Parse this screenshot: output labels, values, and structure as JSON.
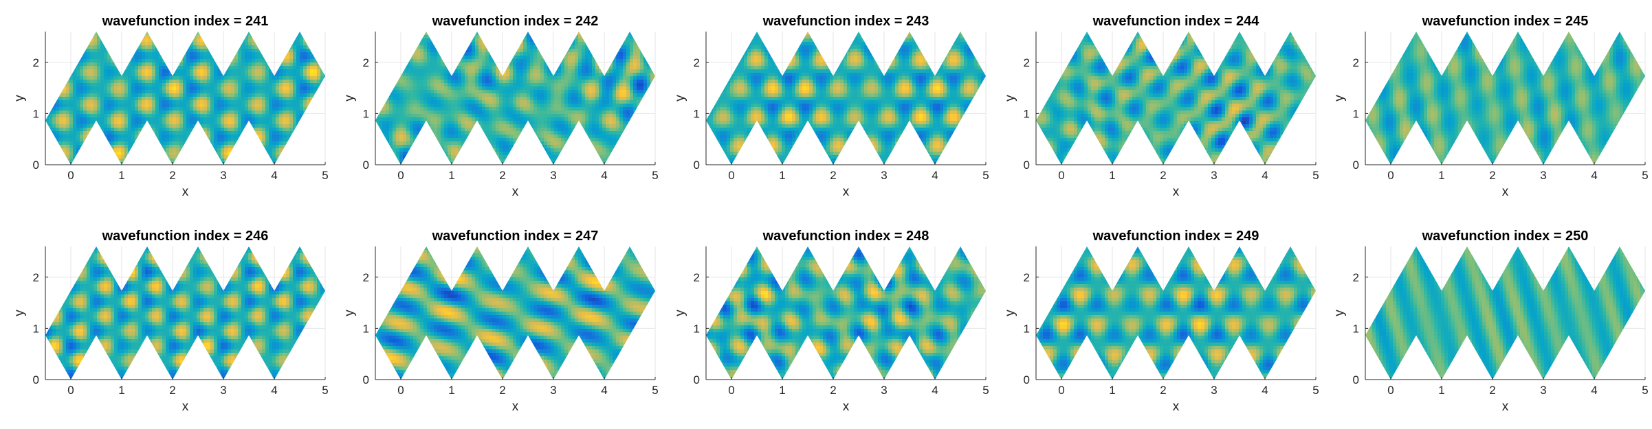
{
  "figure": {
    "colors": {
      "background": "#ffffff",
      "axis": "#262626",
      "grid": "#e6e6e6",
      "colormap": "parula",
      "colormap_stops": [
        "#352a87",
        "#0f5cdd",
        "#1481d6",
        "#06a4ca",
        "#2eb7a4",
        "#87bf77",
        "#d1bb59",
        "#fec832",
        "#f9fb0e"
      ]
    }
  },
  "chart_data": [
    {
      "type": "heatmap",
      "title": "wavefunction index = 241",
      "xlabel": "x",
      "ylabel": "y",
      "xlim": [
        -0.5,
        5
      ],
      "ylim": [
        0,
        2.6
      ],
      "xticks": [
        "0",
        "1",
        "2",
        "3",
        "4",
        "5"
      ],
      "yticks": [
        "0",
        "1",
        "2"
      ],
      "grid": true,
      "domain": "zigzag strip of 10 triangular cells (5 upward, 5 downward) between y = 0 and y = 2.6",
      "field": "eigenmode amplitude, parula colormap",
      "pattern": "hexagonal lattice of small spots"
    },
    {
      "type": "heatmap",
      "title": "wavefunction index = 242",
      "xlabel": "x",
      "ylabel": "y",
      "xlim": [
        -0.5,
        5
      ],
      "ylim": [
        0,
        2.6
      ],
      "xticks": [
        "0",
        "1",
        "2",
        "3",
        "4",
        "5"
      ],
      "yticks": [
        "0",
        "1",
        "2"
      ],
      "grid": true,
      "domain": "zigzag strip of 10 triangular cells (5 upward, 5 downward) between y = 0 and y = 2.6",
      "field": "eigenmode amplitude, parula colormap",
      "pattern": "curved wavy spots"
    },
    {
      "type": "heatmap",
      "title": "wavefunction index = 243",
      "xlabel": "x",
      "ylabel": "y",
      "xlim": [
        -0.5,
        5
      ],
      "ylim": [
        0,
        2.6
      ],
      "xticks": [
        "0",
        "1",
        "2",
        "3",
        "4",
        "5"
      ],
      "yticks": [
        "0",
        "1",
        "2"
      ],
      "grid": true,
      "domain": "zigzag strip of 10 triangular cells (5 upward, 5 downward) between y = 0 and y = 2.6",
      "field": "eigenmode amplitude, parula colormap",
      "pattern": "hexagonal spots"
    },
    {
      "type": "heatmap",
      "title": "wavefunction index = 244",
      "xlabel": "x",
      "ylabel": "y",
      "xlim": [
        -0.5,
        5
      ],
      "ylim": [
        0,
        2.6
      ],
      "xticks": [
        "0",
        "1",
        "2",
        "3",
        "4",
        "5"
      ],
      "yticks": [
        "0",
        "1",
        "2"
      ],
      "grid": true,
      "domain": "zigzag strip of 10 triangular cells (5 upward, 5 downward) between y = 0 and y = 2.6",
      "field": "eigenmode amplitude, parula colormap",
      "pattern": "irregular spots with star-like nodes"
    },
    {
      "type": "heatmap",
      "title": "wavefunction index = 245",
      "xlabel": "x",
      "ylabel": "y",
      "xlim": [
        -0.5,
        5
      ],
      "ylim": [
        0,
        2.6
      ],
      "xticks": [
        "0",
        "1",
        "2",
        "3",
        "4",
        "5"
      ],
      "yticks": [
        "0",
        "1",
        "2"
      ],
      "grid": true,
      "domain": "zigzag strip of 10 triangular cells (5 upward, 5 downward) between y = 0 and y = 2.6",
      "field": "eigenmode amplitude, parula colormap",
      "pattern": "diagonal stripes"
    },
    {
      "type": "heatmap",
      "title": "wavefunction index = 246",
      "xlabel": "x",
      "ylabel": "y",
      "xlim": [
        -0.5,
        5
      ],
      "ylim": [
        0,
        2.6
      ],
      "xticks": [
        "0",
        "1",
        "2",
        "3",
        "4",
        "5"
      ],
      "yticks": [
        "0",
        "1",
        "2"
      ],
      "grid": true,
      "domain": "zigzag strip of 10 triangular cells (5 upward, 5 downward) between y = 0 and y = 2.6",
      "field": "eigenmode amplitude, parula colormap",
      "pattern": "regular hexagonal lattice of spots"
    },
    {
      "type": "heatmap",
      "title": "wavefunction index = 247",
      "xlabel": "x",
      "ylabel": "y",
      "xlim": [
        -0.5,
        5
      ],
      "ylim": [
        0,
        2.6
      ],
      "xticks": [
        "0",
        "1",
        "2",
        "3",
        "4",
        "5"
      ],
      "yticks": [
        "0",
        "1",
        "2"
      ],
      "grid": true,
      "domain": "zigzag strip of 10 triangular cells (5 upward, 5 downward) between y = 0 and y = 2.6",
      "field": "eigenmode amplitude, parula colormap",
      "pattern": "long diagonal stripes"
    },
    {
      "type": "heatmap",
      "title": "wavefunction index = 248",
      "xlabel": "x",
      "ylabel": "y",
      "xlim": [
        -0.5,
        5
      ],
      "ylim": [
        0,
        2.6
      ],
      "xticks": [
        "0",
        "1",
        "2",
        "3",
        "4",
        "5"
      ],
      "yticks": [
        "0",
        "1",
        "2"
      ],
      "grid": true,
      "domain": "zigzag strip of 10 triangular cells (5 upward, 5 downward) between y = 0 and y = 2.6",
      "field": "eigenmode amplitude, parula colormap",
      "pattern": "dense checkerboard spots"
    },
    {
      "type": "heatmap",
      "title": "wavefunction index = 249",
      "xlabel": "x",
      "ylabel": "y",
      "xlim": [
        -0.5,
        5
      ],
      "ylim": [
        0,
        2.6
      ],
      "xticks": [
        "0",
        "1",
        "2",
        "3",
        "4",
        "5"
      ],
      "yticks": [
        "0",
        "1",
        "2"
      ],
      "grid": true,
      "domain": "zigzag strip of 10 triangular cells (5 upward, 5 downward) between y = 0 and y = 2.6",
      "field": "eigenmode amplitude, parula colormap",
      "pattern": "radial star pattern with stripes"
    },
    {
      "type": "heatmap",
      "title": "wavefunction index = 250",
      "xlabel": "x",
      "ylabel": "y",
      "xlim": [
        -0.5,
        5
      ],
      "ylim": [
        0,
        2.6
      ],
      "xticks": [
        "0",
        "1",
        "2",
        "3",
        "4",
        "5"
      ],
      "yticks": [
        "0",
        "1",
        "2"
      ],
      "grid": true,
      "domain": "zigzag strip of 10 triangular cells (5 upward, 5 downward) between y = 0 and y = 2.6",
      "field": "eigenmode amplitude, parula colormap",
      "pattern": "strong diagonal stripes in central cells"
    }
  ]
}
